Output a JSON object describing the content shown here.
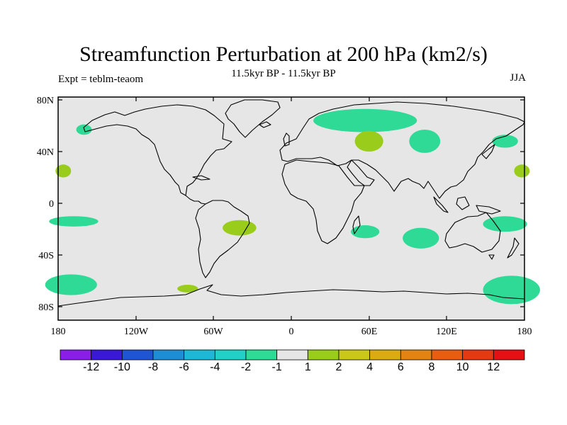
{
  "figure": {
    "title": "Streamfunction Perturbation at 200 hPa (km2/s)",
    "subtitle": "11.5kyr BP - 11.5kyr BP",
    "left_label": "Expt = teblm-teaom",
    "right_label": "JJA"
  },
  "map": {
    "background_color": "#e6e6e6",
    "coastline_color": "#000000",
    "lat_ticks": [
      "80N",
      "40N",
      "0",
      "40S",
      "80S"
    ],
    "lon_ticks": [
      "180",
      "120W",
      "60W",
      "0",
      "60E",
      "120E",
      "180"
    ]
  },
  "anomalies": [
    {
      "lon": -160,
      "lat": 57,
      "rlon": 6,
      "rlat": 4,
      "sign": "neg"
    },
    {
      "lon": -176,
      "lat": 25,
      "rlon": 6,
      "rlat": 5,
      "sign": "pos"
    },
    {
      "lon": 178,
      "lat": 25,
      "rlon": 6,
      "rlat": 5,
      "sign": "pos"
    },
    {
      "lon": 57,
      "lat": 64,
      "rlon": 40,
      "rlat": 9,
      "sign": "neg"
    },
    {
      "lon": 60,
      "lat": 48,
      "rlon": 11,
      "rlat": 8,
      "sign": "pos"
    },
    {
      "lon": 103,
      "lat": 48,
      "rlon": 12,
      "rlat": 9,
      "sign": "neg"
    },
    {
      "lon": 165,
      "lat": 48,
      "rlon": 10,
      "rlat": 5,
      "sign": "neg"
    },
    {
      "lon": -168,
      "lat": -14,
      "rlon": 19,
      "rlat": 4,
      "sign": "neg"
    },
    {
      "lon": -40,
      "lat": -19,
      "rlon": 13,
      "rlat": 6,
      "sign": "pos"
    },
    {
      "lon": 57,
      "lat": -22,
      "rlon": 11,
      "rlat": 5,
      "sign": "neg"
    },
    {
      "lon": 100,
      "lat": -27,
      "rlon": 14,
      "rlat": 8,
      "sign": "neg"
    },
    {
      "lon": 165,
      "lat": -16,
      "rlon": 17,
      "rlat": 6,
      "sign": "neg"
    },
    {
      "lon": -170,
      "lat": -63,
      "rlon": 20,
      "rlat": 8,
      "sign": "neg"
    },
    {
      "lon": 170,
      "lat": -67,
      "rlon": 22,
      "rlat": 11,
      "sign": "neg"
    },
    {
      "lon": -80,
      "lat": -66,
      "rlon": 8,
      "rlat": 3,
      "sign": "pos"
    }
  ],
  "anomaly_colors": {
    "neg": "#2fd996",
    "pos": "#9acd1b"
  },
  "colorbar": {
    "colors": [
      "#8b1ee6",
      "#3a19d6",
      "#1f55d2",
      "#1d8ed6",
      "#1eb7d6",
      "#22d0c8",
      "#2fd996",
      "#e6e6e6",
      "#9acd1b",
      "#cbc61a",
      "#dcaa13",
      "#e28313",
      "#e75e11",
      "#e33a11",
      "#e51014"
    ],
    "labels": [
      "-12",
      "-10",
      "-8",
      "-6",
      "-4",
      "-2",
      "-1",
      "1",
      "2",
      "4",
      "6",
      "8",
      "10",
      "12"
    ]
  }
}
